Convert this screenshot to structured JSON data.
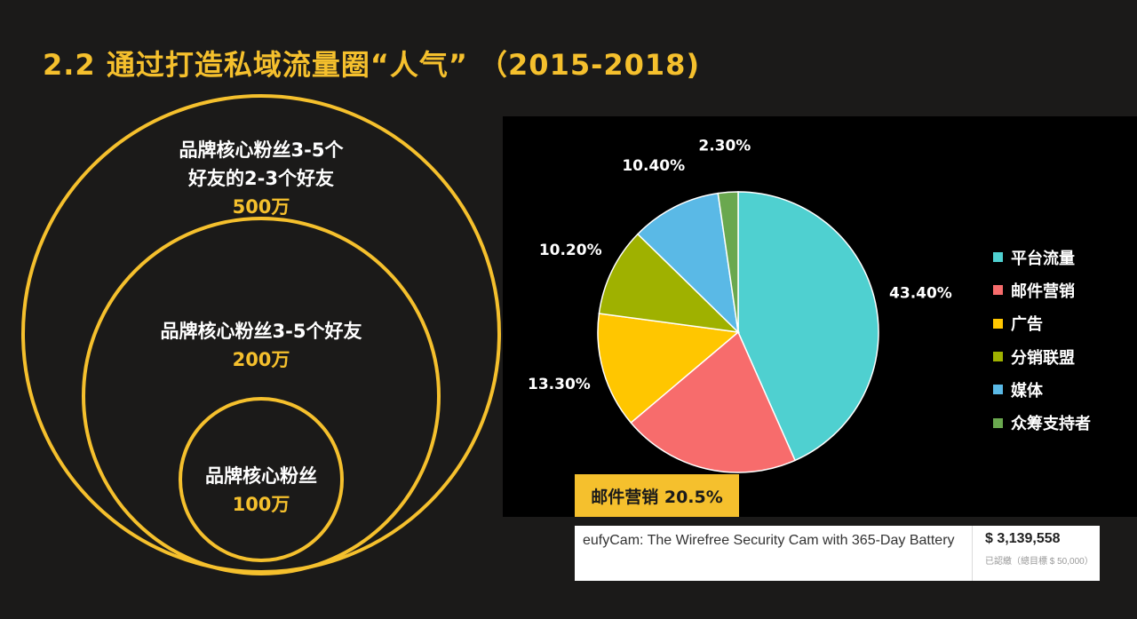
{
  "title": "2.2 通过打造私域流量圈“人气” （2015-2018)",
  "circles": {
    "outer": {
      "lines": [
        "品牌核心粉丝3-5个",
        "好友的2-3个好友"
      ],
      "value": "500万"
    },
    "middle": {
      "lines": [
        "品牌核心粉丝3-5个好友"
      ],
      "value": "200万"
    },
    "inner": {
      "lines": [
        "品牌核心粉丝"
      ],
      "value": "100万"
    },
    "stroke_color": "#f5c02d"
  },
  "chart_data": {
    "type": "pie",
    "title": "",
    "slices": [
      {
        "name": "平台流量",
        "value": 43.4,
        "label": "43.40%",
        "color": "#4fd0d0"
      },
      {
        "name": "邮件营销",
        "value": 20.5,
        "label": "",
        "color": "#f76c6c"
      },
      {
        "name": "广告",
        "value": 13.3,
        "label": "13.30%",
        "color": "#ffc600"
      },
      {
        "name": "分销联盟",
        "value": 10.2,
        "label": "10.20%",
        "color": "#9fb100"
      },
      {
        "name": "媒体",
        "value": 10.4,
        "label": "10.40%",
        "color": "#5ab9e6"
      },
      {
        "name": "众筹支持者",
        "value": 2.3,
        "label": "2.30%",
        "color": "#6aa84f"
      }
    ],
    "legend_position": "right"
  },
  "callout": "邮件营销 20.5%",
  "campaign": {
    "name": "eufyCam: The Wirefree Security Cam with 365-Day Battery",
    "amount": "$ 3,139,558",
    "goal": "已認繳（總目標 $ 50,000）"
  }
}
